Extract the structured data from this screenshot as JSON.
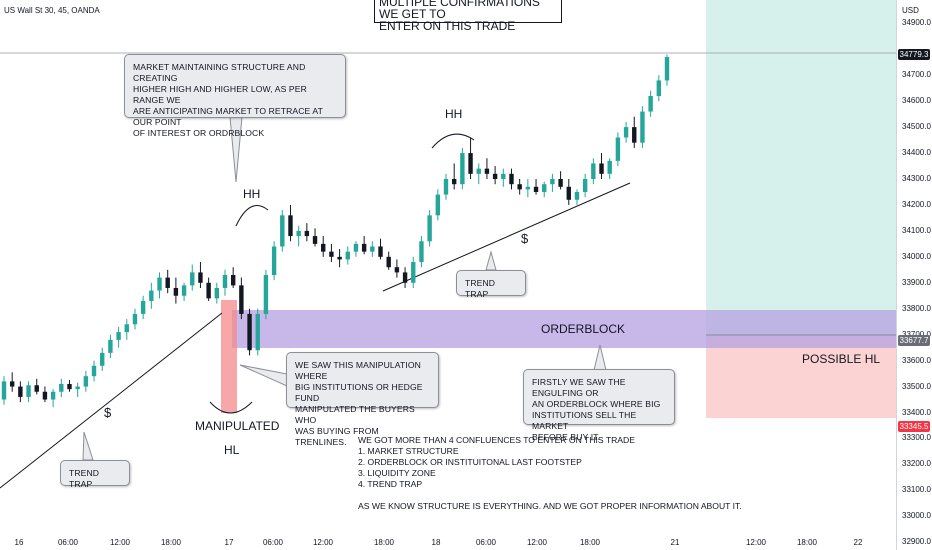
{
  "header": {
    "symbol": "US Wall St 30, 45, OANDA",
    "currency": "USD",
    "banner": "MULTIPLE CONFIRMATIONS WE GET TO\nENTER ON THIS TRADE"
  },
  "chart_data": {
    "type": "candlestick",
    "timeframe": "45",
    "instrument": "US Wall St 30",
    "broker": "OANDA",
    "y_ticks": [
      32900,
      33000,
      33100,
      33200,
      33300,
      33400,
      33500,
      33600,
      33700,
      33800,
      33900,
      34000,
      34100,
      34200,
      34300,
      34400,
      34500,
      34600,
      34700,
      34900
    ],
    "ylim": [
      32870,
      34990
    ],
    "x_ticks": [
      "16",
      "06:00",
      "12:00",
      "18:00",
      "17",
      "06:00",
      "12:00",
      "18:00",
      "18",
      "06:00",
      "12:00",
      "18:00",
      "21",
      "12:00",
      "18:00",
      "22"
    ],
    "price_labels": [
      {
        "value": "34779.3",
        "color": "#131722"
      },
      {
        "value": "33677.7",
        "color": "#6a6d78"
      },
      {
        "value": "33345.5",
        "color": "#f23645"
      }
    ],
    "current_price": 34779.3,
    "candle_colors": {
      "up": "#26a69a",
      "down": "#131722"
    },
    "candles": [
      [
        33450,
        33540,
        33430,
        33520
      ],
      [
        33520,
        33555,
        33480,
        33500
      ],
      [
        33500,
        33520,
        33440,
        33460
      ],
      [
        33460,
        33520,
        33440,
        33505
      ],
      [
        33505,
        33530,
        33470,
        33480
      ],
      [
        33480,
        33500,
        33440,
        33450
      ],
      [
        33450,
        33490,
        33420,
        33480
      ],
      [
        33480,
        33530,
        33460,
        33510
      ],
      [
        33510,
        33525,
        33480,
        33490
      ],
      [
        33490,
        33515,
        33460,
        33500
      ],
      [
        33500,
        33560,
        33480,
        33540
      ],
      [
        33540,
        33600,
        33520,
        33580
      ],
      [
        33580,
        33650,
        33560,
        33630
      ],
      [
        33630,
        33700,
        33610,
        33680
      ],
      [
        33680,
        33730,
        33650,
        33710
      ],
      [
        33710,
        33760,
        33680,
        33740
      ],
      [
        33740,
        33800,
        33720,
        33780
      ],
      [
        33780,
        33850,
        33760,
        33830
      ],
      [
        33830,
        33900,
        33800,
        33870
      ],
      [
        33870,
        33940,
        33840,
        33920
      ],
      [
        33920,
        33950,
        33860,
        33880
      ],
      [
        33880,
        33920,
        33820,
        33850
      ],
      [
        33850,
        33900,
        33830,
        33890
      ],
      [
        33890,
        33970,
        33870,
        33940
      ],
      [
        33940,
        33980,
        33880,
        33900
      ],
      [
        33900,
        33920,
        33830,
        33840
      ],
      [
        33840,
        33900,
        33820,
        33880
      ],
      [
        33880,
        33950,
        33850,
        33930
      ],
      [
        33930,
        33960,
        33880,
        33890
      ],
      [
        33890,
        33920,
        33760,
        33780
      ],
      [
        33780,
        33800,
        33620,
        33640
      ],
      [
        33640,
        33800,
        33620,
        33780
      ],
      [
        33780,
        33950,
        33760,
        33930
      ],
      [
        33930,
        34060,
        33910,
        34040
      ],
      [
        34040,
        34180,
        34020,
        34160
      ],
      [
        34160,
        34200,
        34060,
        34080
      ],
      [
        34080,
        34120,
        34040,
        34100
      ],
      [
        34100,
        34130,
        34060,
        34080
      ],
      [
        34080,
        34110,
        34040,
        34050
      ],
      [
        34050,
        34080,
        34000,
        34020
      ],
      [
        34020,
        34050,
        33980,
        34000
      ],
      [
        34000,
        34030,
        33960,
        33990
      ],
      [
        33990,
        34040,
        33970,
        34020
      ],
      [
        34020,
        34060,
        34000,
        34050
      ],
      [
        34050,
        34080,
        34010,
        34020
      ],
      [
        34020,
        34060,
        34000,
        34040
      ],
      [
        34040,
        34070,
        33990,
        34000
      ],
      [
        34000,
        34020,
        33950,
        33960
      ],
      [
        33960,
        33990,
        33920,
        33940
      ],
      [
        33940,
        33960,
        33880,
        33900
      ],
      [
        33900,
        34000,
        33880,
        33980
      ],
      [
        33980,
        34080,
        33960,
        34060
      ],
      [
        34060,
        34180,
        34040,
        34160
      ],
      [
        34160,
        34260,
        34140,
        34240
      ],
      [
        34240,
        34320,
        34220,
        34300
      ],
      [
        34300,
        34360,
        34260,
        34280
      ],
      [
        34280,
        34420,
        34260,
        34400
      ],
      [
        34400,
        34460,
        34300,
        34320
      ],
      [
        34320,
        34360,
        34280,
        34340
      ],
      [
        34340,
        34380,
        34300,
        34320
      ],
      [
        34320,
        34350,
        34280,
        34300
      ],
      [
        34300,
        34340,
        34270,
        34320
      ],
      [
        34320,
        34340,
        34260,
        34280
      ],
      [
        34280,
        34300,
        34240,
        34260
      ],
      [
        34260,
        34300,
        34230,
        34270
      ],
      [
        34270,
        34300,
        34240,
        34250
      ],
      [
        34250,
        34290,
        34230,
        34280
      ],
      [
        34280,
        34320,
        34250,
        34300
      ],
      [
        34300,
        34330,
        34260,
        34270
      ],
      [
        34270,
        34300,
        34200,
        34220
      ],
      [
        34220,
        34260,
        34200,
        34250
      ],
      [
        34250,
        34320,
        34230,
        34300
      ],
      [
        34300,
        34380,
        34280,
        34360
      ],
      [
        34360,
        34400,
        34300,
        34320
      ],
      [
        34320,
        34380,
        34300,
        34370
      ],
      [
        34370,
        34480,
        34350,
        34460
      ],
      [
        34460,
        34520,
        34440,
        34500
      ],
      [
        34500,
        34540,
        34420,
        34440
      ],
      [
        34440,
        34580,
        34420,
        34560
      ],
      [
        34560,
        34640,
        34540,
        34620
      ],
      [
        34620,
        34700,
        34600,
        34680
      ],
      [
        34680,
        34780,
        34660,
        34770
      ]
    ]
  },
  "zones": {
    "orderblock_label": "ORDERBLOCK",
    "possible_hl_label": "POSSIBLE HL"
  },
  "labels": {
    "hh1": "HH",
    "hh2": "HH",
    "dollar1": "$",
    "dollar2": "$",
    "manipulated": "MANIPULATED",
    "hl": "HL"
  },
  "notes": {
    "structure": "MARKET MAINTAINING STRUCTURE AND CREATING\nHIGHER HIGH AND HIGHER LOW, AS PER RANGE WE\nARE ANTICIPATING MARKET TO RETRACE AT OUR POINT\nOF INTEREST OR ORDRBLOCK",
    "trend_trap_right": "TREND TRAP",
    "trend_trap_left": "TREND TRAP",
    "manipulation": "WE SAW THIS MANIPULATION WHERE\nBIG INSTITUTIONS OR HEDGE FUND\nMANIPULATED THE BUYERS WHO\nWAS BUYING FROM TRENLINES.",
    "engulfing": "FIRSTLY WE SAW THE ENGULFING OR\nAN ORDERBLOCK WHERE BIG\nINSTITUTIONS SELL THE MARKET\nBEFORE BUY IT.",
    "confluences": "WE GOT MORE THAN 4 CONFLUENCES TO ENTER ON THIS TRADE\n1. MARKET STRUCTURE\n2. ORDERBLOCK OR INSTITUITONAL LAST FOOTSTEP\n3. LIQUIDITY ZONE\n4. TREND TRAP\n\nAS WE KNOW STRUCTURE IS EVERYTHING. AND WE GOT PROPER INFORMATION ABOUT IT."
  }
}
